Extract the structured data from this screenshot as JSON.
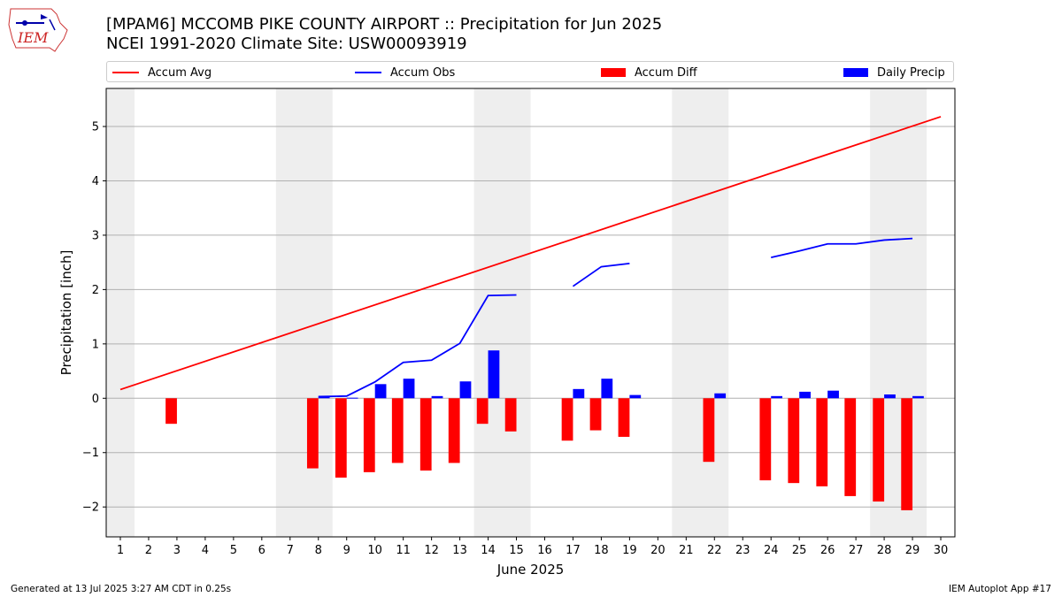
{
  "header": {
    "title_line1": "[MPAM6] MCCOMB PIKE COUNTY AIRPORT :: Precipitation for Jun 2025",
    "title_line2": "NCEI 1991-2020 Climate Site: USW00093919",
    "logo_text": "IEM"
  },
  "legend": {
    "items": [
      {
        "label": "Accum Avg",
        "color": "#ff0000",
        "kind": "line"
      },
      {
        "label": "Accum Obs",
        "color": "#0000ff",
        "kind": "line"
      },
      {
        "label": "Accum Diff",
        "color": "#ff0000",
        "kind": "bar"
      },
      {
        "label": "Daily Precip",
        "color": "#0000ff",
        "kind": "bar"
      }
    ]
  },
  "footer": {
    "left": "Generated at 13 Jul 2025 3:27 AM CDT in 0.25s",
    "right": "IEM Autoplot App #17"
  },
  "chart_data": {
    "type": "bar",
    "xlabel": "June 2025",
    "ylabel": "Precipitation [inch]",
    "xlim": [
      0.5,
      30.5
    ],
    "ylim": [
      -2.55,
      5.7
    ],
    "yticks": [
      -2,
      -1,
      0,
      1,
      2,
      3,
      4,
      5
    ],
    "ytick_labels": [
      "−2",
      "−1",
      "0",
      "1",
      "2",
      "3",
      "4",
      "5"
    ],
    "days": [
      1,
      2,
      3,
      4,
      5,
      6,
      7,
      8,
      9,
      10,
      11,
      12,
      13,
      14,
      15,
      16,
      17,
      18,
      19,
      20,
      21,
      22,
      23,
      24,
      25,
      26,
      27,
      28,
      29,
      30
    ],
    "weekend_shading": [
      [
        0.5,
        1.5
      ],
      [
        6.5,
        8.5
      ],
      [
        13.5,
        15.5
      ],
      [
        20.5,
        22.5
      ],
      [
        27.5,
        29.5
      ]
    ],
    "grid": "horizontal",
    "series": [
      {
        "name": "Accum Avg",
        "kind": "line",
        "color": "#ff0000",
        "x": [
          1,
          30
        ],
        "values": [
          0.16,
          5.18
        ]
      },
      {
        "name": "Accum Obs",
        "kind": "line",
        "color": "#0000ff",
        "segments": [
          {
            "x": [
              8,
              9,
              10,
              11,
              12,
              13,
              14,
              15
            ],
            "values": [
              0.03,
              0.04,
              0.3,
              0.66,
              0.7,
              1.01,
              1.89,
              1.9
            ]
          },
          {
            "x": [
              17,
              18,
              19
            ],
            "values": [
              2.06,
              2.42,
              2.48
            ]
          },
          {
            "x": [
              24,
              25,
              26,
              27,
              28,
              29
            ],
            "values": [
              2.59,
              2.71,
              2.84,
              2.84,
              2.91,
              2.94
            ]
          }
        ]
      },
      {
        "name": "Accum Diff",
        "kind": "bar",
        "color": "#ff0000",
        "x": [
          3,
          8,
          9,
          10,
          11,
          12,
          13,
          14,
          15,
          17,
          18,
          19,
          22,
          24,
          25,
          26,
          27,
          28,
          29
        ],
        "values": [
          -0.47,
          -1.29,
          -1.46,
          -1.36,
          -1.19,
          -1.33,
          -1.19,
          -0.47,
          -0.61,
          -0.78,
          -0.59,
          -0.71,
          -1.17,
          -1.51,
          -1.56,
          -1.62,
          -1.8,
          -1.9,
          -2.06
        ]
      },
      {
        "name": "Daily Precip",
        "kind": "bar",
        "color": "#0000ff",
        "x": [
          8,
          9,
          10,
          11,
          12,
          13,
          14,
          17,
          18,
          19,
          22,
          24,
          25,
          26,
          28,
          29
        ],
        "values": [
          0.03,
          0.01,
          0.26,
          0.36,
          0.04,
          0.31,
          0.88,
          0.17,
          0.36,
          0.06,
          0.09,
          0.04,
          0.12,
          0.14,
          0.07,
          0.04
        ]
      }
    ]
  }
}
